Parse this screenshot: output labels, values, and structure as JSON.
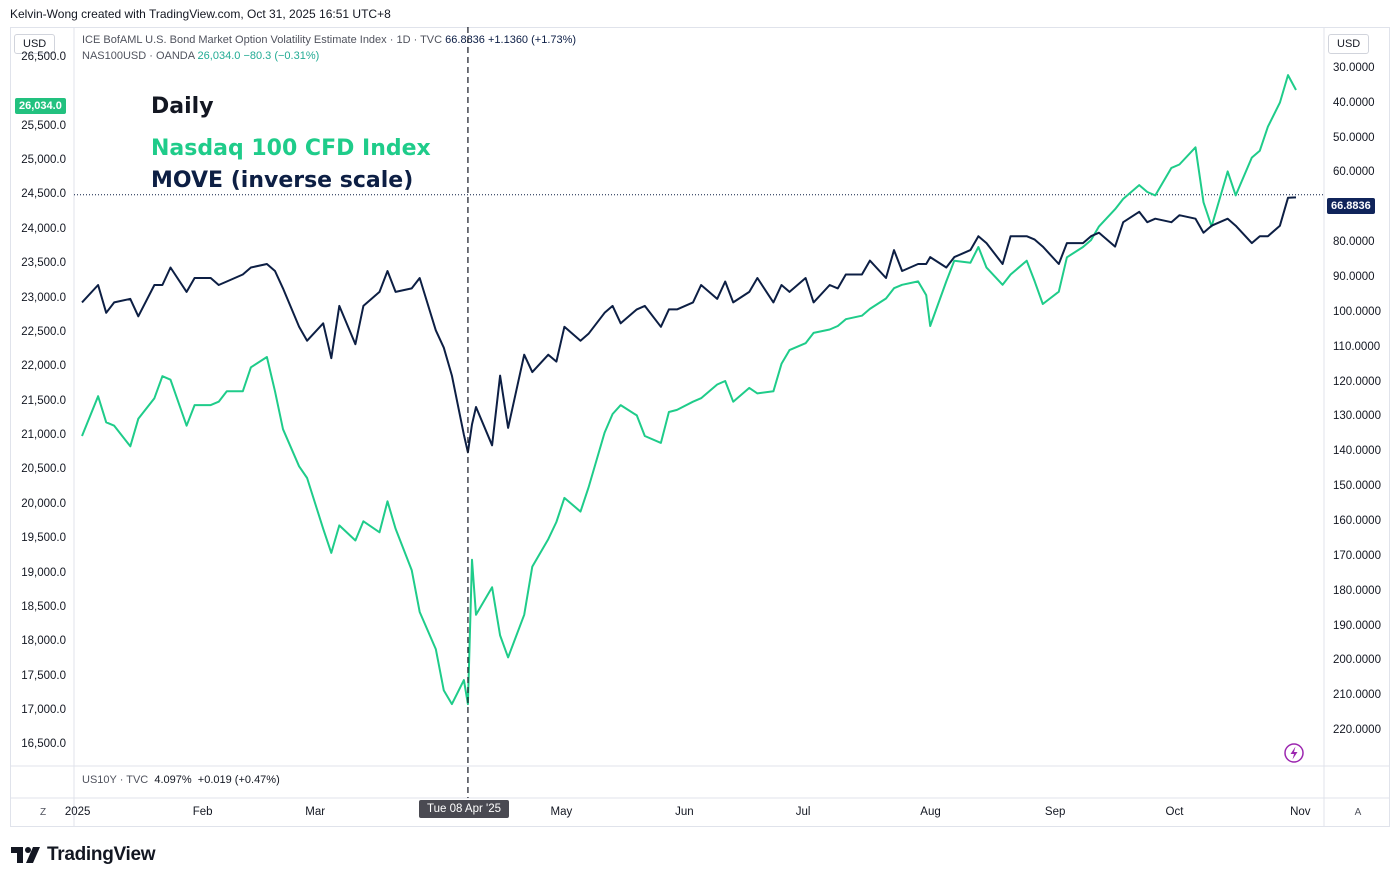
{
  "header": {
    "attribution": "Kelvin-Wong created with TradingView.com, Oct 31, 2025 16:51 UTC+8"
  },
  "left_unit": "USD",
  "right_unit": "USD",
  "legend": {
    "move_title": "ICE BofAML U.S. Bond Market Option Volatility Estimate Index · 1D · TVC",
    "move_value": "66.8836",
    "move_change": "+1.1360 (+1.73%)",
    "ndx_title": "NAS100USD · OANDA",
    "ndx_value": "26,034.0",
    "ndx_change": "−80.3 (−0.31%)"
  },
  "annotations": {
    "daily": "Daily",
    "ndx_name": "Nasdaq 100 CFD Index",
    "move_name": "MOVE (inverse scale)"
  },
  "colors": {
    "ndx": "#1fcc8a",
    "move": "#0d1f44",
    "ndx_tag": "#22c17f",
    "move_tag": "#10245a"
  },
  "lower_pane": {
    "label": "US10Y · TVC",
    "value": "4.097%",
    "change": "+0.019 (+0.47%)"
  },
  "crosshair_date": "Tue 08 Apr '25",
  "corner_left": "Z",
  "corner_right": "A",
  "chart_data": {
    "type": "line",
    "x_tick_labels": [
      "2025",
      "Feb",
      "Mar",
      "May",
      "Jun",
      "Jul",
      "Aug",
      "Sep",
      "Oct",
      "Nov"
    ],
    "left_axis": {
      "ticks": [
        "26,500.0",
        "25,500.0",
        "25,000.0",
        "24,500.0",
        "24,000.0",
        "23,500.0",
        "23,000.0",
        "22,500.0",
        "22,000.0",
        "21,500.0",
        "21,000.0",
        "20,500.0",
        "20,000.0",
        "19,500.0",
        "19,000.0",
        "18,500.0",
        "18,000.0",
        "17,500.0",
        "17,000.0",
        "16,500.0"
      ],
      "range": [
        16200,
        26950
      ]
    },
    "right_axis": {
      "ticks": [
        "30.0000",
        "40.0000",
        "50.0000",
        "60.0000",
        "70.0000",
        "80.0000",
        "90.0000",
        "100.0000",
        "110.0000",
        "120.0000",
        "130.0000",
        "140.0000",
        "150.0000",
        "160.0000",
        "170.0000",
        "180.0000",
        "190.0000",
        "200.0000",
        "210.0000",
        "220.0000"
      ],
      "range": [
        18.0,
        230.0
      ],
      "inverted": true
    },
    "series": [
      {
        "name": "NAS100USD · OANDA",
        "axis": "left",
        "x": [
          "2025-01-02",
          "2025-01-06",
          "2025-01-08",
          "2025-01-10",
          "2025-01-14",
          "2025-01-16",
          "2025-01-20",
          "2025-01-22",
          "2025-01-24",
          "2025-01-28",
          "2025-01-30",
          "2025-02-03",
          "2025-02-05",
          "2025-02-07",
          "2025-02-11",
          "2025-02-13",
          "2025-02-17",
          "2025-02-19",
          "2025-02-21",
          "2025-02-25",
          "2025-02-27",
          "2025-03-03",
          "2025-03-05",
          "2025-03-07",
          "2025-03-11",
          "2025-03-13",
          "2025-03-17",
          "2025-03-19",
          "2025-03-21",
          "2025-03-25",
          "2025-03-27",
          "2025-03-31",
          "2025-04-02",
          "2025-04-04",
          "2025-04-07",
          "2025-04-08",
          "2025-04-09",
          "2025-04-10",
          "2025-04-14",
          "2025-04-16",
          "2025-04-18",
          "2025-04-22",
          "2025-04-24",
          "2025-04-28",
          "2025-04-30",
          "2025-05-02",
          "2025-05-06",
          "2025-05-08",
          "2025-05-12",
          "2025-05-14",
          "2025-05-16",
          "2025-05-20",
          "2025-05-22",
          "2025-05-26",
          "2025-05-28",
          "2025-05-30",
          "2025-06-03",
          "2025-06-05",
          "2025-06-09",
          "2025-06-11",
          "2025-06-13",
          "2025-06-17",
          "2025-06-19",
          "2025-06-23",
          "2025-06-25",
          "2025-06-27",
          "2025-07-01",
          "2025-07-03",
          "2025-07-07",
          "2025-07-09",
          "2025-07-11",
          "2025-07-15",
          "2025-07-17",
          "2025-07-21",
          "2025-07-23",
          "2025-07-25",
          "2025-07-29",
          "2025-07-31",
          "2025-08-01",
          "2025-08-05",
          "2025-08-07",
          "2025-08-11",
          "2025-08-13",
          "2025-08-15",
          "2025-08-19",
          "2025-08-21",
          "2025-08-25",
          "2025-08-27",
          "2025-08-29",
          "2025-09-02",
          "2025-09-04",
          "2025-09-08",
          "2025-09-10",
          "2025-09-12",
          "2025-09-16",
          "2025-09-18",
          "2025-09-22",
          "2025-09-24",
          "2025-09-26",
          "2025-09-30",
          "2025-10-02",
          "2025-10-06",
          "2025-10-08",
          "2025-10-10",
          "2025-10-14",
          "2025-10-16",
          "2025-10-20",
          "2025-10-22",
          "2025-10-24",
          "2025-10-27",
          "2025-10-29",
          "2025-10-31"
        ],
        "values": [
          21000,
          21580,
          21200,
          21150,
          20850,
          21250,
          21550,
          21870,
          21820,
          21150,
          21450,
          21450,
          21500,
          21650,
          21650,
          22000,
          22150,
          21650,
          21100,
          20560,
          20390,
          19650,
          19300,
          19700,
          19480,
          19760,
          19600,
          20050,
          19650,
          19050,
          18440,
          17900,
          17300,
          17100,
          17450,
          17100,
          19200,
          18400,
          18800,
          18100,
          17780,
          18400,
          19100,
          19500,
          19750,
          20100,
          19900,
          20250,
          21050,
          21320,
          21450,
          21300,
          21000,
          20900,
          21350,
          21380,
          21500,
          21550,
          21750,
          21800,
          21500,
          21700,
          21620,
          21650,
          22050,
          22250,
          22350,
          22500,
          22550,
          22600,
          22700,
          22750,
          22850,
          23000,
          23150,
          23200,
          23250,
          23050,
          22600,
          23250,
          23550,
          23520,
          23750,
          23450,
          23200,
          23350,
          23550,
          23250,
          22920,
          23100,
          23600,
          23750,
          23850,
          24050,
          24300,
          24450,
          24650,
          24550,
          24500,
          24900,
          24950,
          25200,
          24400,
          24050,
          24850,
          24500,
          25050,
          25150,
          25500,
          25850,
          26250,
          26034
        ]
      },
      {
        "name": "ICE BofAML U.S. Bond Market Option Volatility Estimate Index · 1D · TVC",
        "axis": "right",
        "x": [
          "2025-01-02",
          "2025-01-06",
          "2025-01-08",
          "2025-01-10",
          "2025-01-14",
          "2025-01-16",
          "2025-01-20",
          "2025-01-22",
          "2025-01-24",
          "2025-01-28",
          "2025-01-30",
          "2025-02-03",
          "2025-02-05",
          "2025-02-07",
          "2025-02-11",
          "2025-02-13",
          "2025-02-17",
          "2025-02-19",
          "2025-02-21",
          "2025-02-25",
          "2025-02-27",
          "2025-03-03",
          "2025-03-05",
          "2025-03-07",
          "2025-03-11",
          "2025-03-13",
          "2025-03-17",
          "2025-03-19",
          "2025-03-21",
          "2025-03-25",
          "2025-03-27",
          "2025-03-31",
          "2025-04-02",
          "2025-04-04",
          "2025-04-07",
          "2025-04-08",
          "2025-04-09",
          "2025-04-10",
          "2025-04-14",
          "2025-04-16",
          "2025-04-18",
          "2025-04-22",
          "2025-04-24",
          "2025-04-28",
          "2025-04-30",
          "2025-05-02",
          "2025-05-06",
          "2025-05-08",
          "2025-05-12",
          "2025-05-14",
          "2025-05-16",
          "2025-05-20",
          "2025-05-22",
          "2025-05-26",
          "2025-05-28",
          "2025-05-30",
          "2025-06-03",
          "2025-06-05",
          "2025-06-09",
          "2025-06-11",
          "2025-06-13",
          "2025-06-17",
          "2025-06-19",
          "2025-06-23",
          "2025-06-25",
          "2025-06-27",
          "2025-07-01",
          "2025-07-03",
          "2025-07-07",
          "2025-07-09",
          "2025-07-11",
          "2025-07-15",
          "2025-07-17",
          "2025-07-21",
          "2025-07-23",
          "2025-07-25",
          "2025-07-29",
          "2025-07-31",
          "2025-08-01",
          "2025-08-05",
          "2025-08-07",
          "2025-08-11",
          "2025-08-13",
          "2025-08-15",
          "2025-08-19",
          "2025-08-21",
          "2025-08-25",
          "2025-08-27",
          "2025-08-29",
          "2025-09-02",
          "2025-09-04",
          "2025-09-08",
          "2025-09-10",
          "2025-09-12",
          "2025-09-16",
          "2025-09-18",
          "2025-09-22",
          "2025-09-24",
          "2025-09-26",
          "2025-09-30",
          "2025-10-02",
          "2025-10-06",
          "2025-10-08",
          "2025-10-10",
          "2025-10-14",
          "2025-10-16",
          "2025-10-20",
          "2025-10-22",
          "2025-10-24",
          "2025-10-27",
          "2025-10-29",
          "2025-10-31"
        ],
        "values": [
          97,
          92,
          100,
          97,
          96,
          101,
          92,
          92,
          87,
          94,
          90,
          90,
          92,
          91,
          89,
          87,
          86,
          88,
          93,
          104,
          108,
          103,
          113,
          98,
          109,
          98,
          94,
          88,
          94,
          93,
          90,
          105,
          110,
          118,
          135,
          140,
          132,
          127,
          138,
          118,
          133,
          112,
          117,
          112,
          114,
          104,
          108,
          106,
          100,
          98,
          103,
          99,
          98,
          104,
          99,
          99,
          97,
          92,
          96,
          91,
          97,
          94,
          90,
          97,
          92,
          94,
          90,
          97,
          92,
          93,
          89,
          89,
          85,
          90,
          82,
          88,
          86,
          86,
          84,
          87,
          84,
          82,
          78,
          80,
          86,
          78,
          78,
          79,
          81,
          86,
          80,
          80,
          78,
          77,
          81,
          74,
          71,
          74,
          73,
          74,
          72,
          73,
          77,
          75,
          73,
          75,
          80,
          78,
          78,
          75,
          67,
          66.88
        ]
      }
    ],
    "crosshair": "2025-04-08",
    "horizontal_marker": 24510
  }
}
